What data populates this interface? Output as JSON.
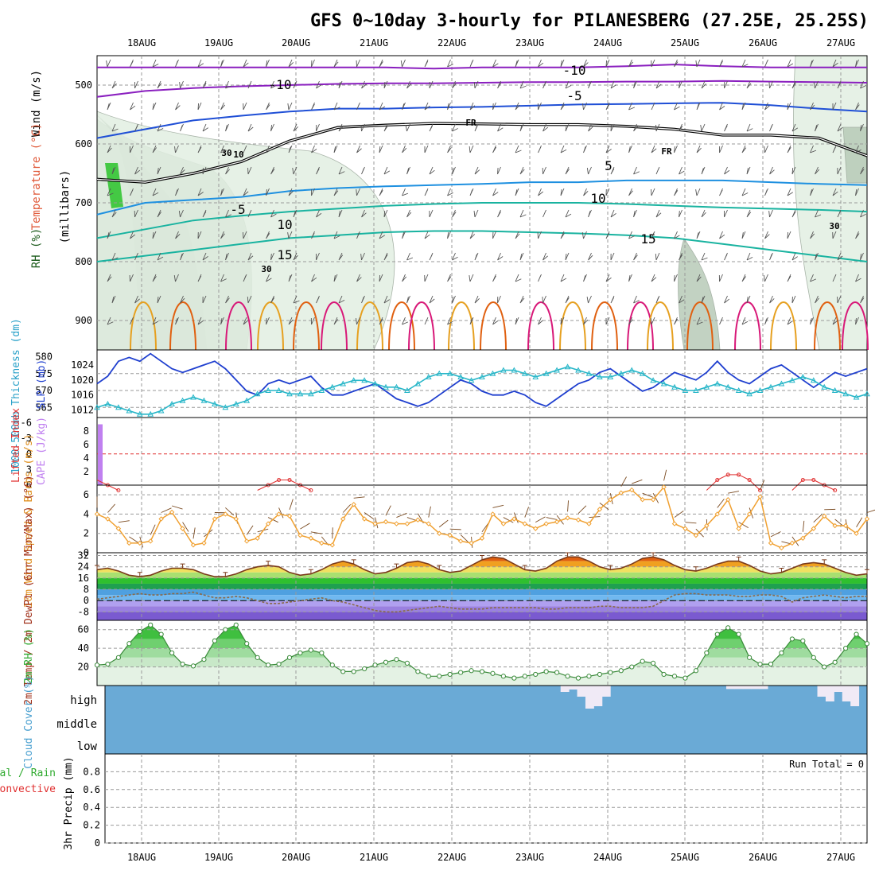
{
  "title": "GFS 0~10day 3-hourly for PILANESBERG (27.25E, 25.25S)",
  "dates": [
    "18AUG",
    "19AUG",
    "20AUG",
    "21AUG",
    "22AUG",
    "23AUG",
    "24AUG",
    "25AUG",
    "26AUG",
    "27AUG"
  ],
  "colors": {
    "temp_purple": "#8a1fbf",
    "temp_blue": "#1f4fd6",
    "temp_cyan": "#1e90e0",
    "temp_teal": "#19b3a0",
    "temp_orange": "#e6a020",
    "temp_red": "#e06010",
    "temp_magenta": "#d81878",
    "rh_dark": "#8a9a8a",
    "rh_mid": "#b8cbb8",
    "rh_light": "#e2efe2",
    "rh_green": "#44c944",
    "slp": "#1f3fcf",
    "thick": "#27b6c8",
    "cape": "#c080f0",
    "li": "#e03030",
    "wind10": "#f0a030",
    "barb": "#7a4a20",
    "temp2m": "#7a3a1a",
    "dew": "#8a6a4a",
    "rh2m": "#2faa2f",
    "cloud": "#6aaad6",
    "cloud_gap": "#f0eaf6"
  },
  "chart_data": [
    {
      "type": "heatmap",
      "panel": "upper_air",
      "ylabel": "Wind (m/s)",
      "ylabel_parts": [
        "Temperature (°C)",
        "RH (%)",
        "(millibars)"
      ],
      "yticks": [
        500,
        600,
        700,
        800,
        900
      ],
      "ylim": [
        450,
        950
      ],
      "contour_labels": [
        "-10",
        "-10",
        "-5",
        "FR",
        "FR",
        "5",
        "-5",
        "10",
        "10",
        "15",
        "15",
        "10",
        "30",
        "30",
        "30"
      ],
      "temperature_isotherms": [
        {
          "label": "-10",
          "pressure": [
            470,
            470,
            470,
            470,
            470,
            470,
            470,
            472,
            470,
            470,
            470,
            468,
            465,
            468,
            470,
            470,
            470
          ]
        },
        {
          "label": "-10",
          "pressure": [
            520,
            510,
            505,
            502,
            500,
            498,
            497,
            497,
            496,
            495,
            495,
            494,
            494,
            493,
            494,
            495,
            496
          ]
        },
        {
          "label": "-5",
          "pressure": [
            590,
            575,
            560,
            552,
            545,
            540,
            540,
            538,
            537,
            535,
            533,
            532,
            531,
            530,
            534,
            540,
            545
          ]
        },
        {
          "label": "FR",
          "pressure": [
            660,
            665,
            650,
            630,
            595,
            572,
            568,
            565,
            566,
            567,
            567,
            570,
            575,
            585,
            585,
            590,
            620
          ]
        },
        {
          "label": "5",
          "pressure": [
            720,
            700,
            695,
            690,
            680,
            675,
            672,
            670,
            668,
            665,
            665,
            662,
            662,
            662,
            665,
            668,
            670
          ]
        },
        {
          "label": "10",
          "pressure": [
            760,
            745,
            730,
            722,
            715,
            710,
            705,
            702,
            700,
            700,
            700,
            702,
            705,
            708,
            710,
            712,
            715
          ]
        },
        {
          "label": "15",
          "pressure": [
            800,
            790,
            780,
            770,
            760,
            755,
            750,
            748,
            748,
            750,
            752,
            755,
            760,
            770,
            780,
            790,
            800
          ]
        }
      ]
    },
    {
      "type": "line",
      "panel": "slp_thickness",
      "ylabel_left": "1000-500mb Thickness (dm)",
      "ylabel_right": "SLP (mb)",
      "yticks_left": [
        "580",
        "575",
        "570",
        "565"
      ],
      "yticks_right": [
        "1024",
        "1020",
        "1016",
        "1012"
      ],
      "series": [
        {
          "name": "SLP (mb)",
          "values": [
            1019,
            1021,
            1025,
            1026,
            1025,
            1027,
            1025,
            1023,
            1022,
            1023,
            1024,
            1025,
            1023,
            1020,
            1017,
            1016,
            1019,
            1020,
            1019,
            1020,
            1021,
            1018,
            1016,
            1016,
            1017,
            1018,
            1019,
            1017,
            1015,
            1014,
            1013,
            1014,
            1016,
            1018,
            1020,
            1019,
            1017,
            1016,
            1016,
            1017,
            1016,
            1014,
            1013,
            1015,
            1017,
            1019,
            1020,
            1022,
            1023,
            1021,
            1019,
            1017,
            1018,
            1020,
            1022,
            1021,
            1020,
            1022,
            1025,
            1022,
            1020,
            1019,
            1021,
            1023,
            1024,
            1022,
            1020,
            1018,
            1020,
            1022,
            1021,
            1022,
            1023
          ]
        },
        {
          "name": "1000-500mb Thickness (dm)",
          "values": [
            565,
            566,
            565,
            564,
            563,
            563,
            564,
            566,
            567,
            568,
            567,
            566,
            565,
            566,
            567,
            569,
            570,
            570,
            569,
            569,
            569,
            570,
            571,
            572,
            573,
            573,
            572,
            571,
            571,
            570,
            572,
            574,
            575,
            575,
            574,
            573,
            574,
            575,
            576,
            576,
            575,
            574,
            575,
            576,
            577,
            576,
            575,
            574,
            574,
            575,
            576,
            575,
            573,
            572,
            571,
            570,
            570,
            571,
            572,
            571,
            570,
            569,
            570,
            571,
            572,
            573,
            574,
            573,
            571,
            570,
            569,
            568,
            569
          ]
        }
      ]
    },
    {
      "type": "bar",
      "panel": "cape_li",
      "ylabel_left": "Lifted Index",
      "ylabel_right": "CAPE (J/kg)",
      "yticks_left": [
        "-6",
        "-3",
        "0",
        "3",
        "6"
      ],
      "yticks_right": [
        "8",
        "6",
        "4",
        "2"
      ],
      "cape_values": [
        9,
        0,
        0,
        0,
        0,
        0,
        0,
        0,
        0,
        0,
        0,
        0,
        0,
        0,
        0,
        0,
        0,
        0,
        0,
        0,
        0,
        0,
        0,
        0,
        0,
        0,
        0,
        0,
        0,
        0,
        0,
        0,
        0,
        0,
        0,
        0,
        0,
        0,
        0,
        0,
        0,
        0,
        0,
        0,
        0,
        0,
        0,
        0,
        0,
        0,
        0,
        0,
        0,
        0,
        0,
        0,
        0,
        0,
        0,
        0,
        0,
        0,
        0,
        0,
        0,
        0,
        0,
        0,
        0,
        0,
        0,
        0,
        0
      ],
      "li_values": [
        5,
        6,
        7,
        7,
        7,
        7,
        7,
        7,
        7,
        7,
        7,
        7,
        7,
        7,
        7,
        7,
        6,
        5,
        5,
        6,
        7,
        7,
        7,
        7,
        7,
        7,
        7,
        7,
        7,
        7,
        7,
        7,
        7,
        7,
        7,
        7,
        7,
        7,
        7,
        7,
        7,
        7,
        7,
        7,
        7,
        7,
        7,
        7,
        7,
        7,
        7,
        7,
        7,
        7,
        7,
        7,
        7,
        7,
        5,
        4,
        4,
        5,
        7,
        7,
        7,
        7,
        5,
        5,
        6,
        7,
        7,
        7,
        7
      ]
    },
    {
      "type": "line",
      "panel": "wind10m",
      "ylabel": "10m Wind Speed & Barbs (m/s)",
      "yticks": [
        "6",
        "4",
        "2",
        "0"
      ],
      "ylim": [
        0,
        7
      ],
      "series": [
        {
          "name": "10m Wind Speed",
          "values": [
            4,
            3.5,
            2.5,
            1,
            1,
            1.2,
            3.5,
            4.2,
            2.5,
            0.8,
            1,
            3.5,
            4,
            3.5,
            1.2,
            1.5,
            3,
            4,
            3.8,
            1.8,
            1.5,
            1,
            0.8,
            3.5,
            5,
            3.5,
            3,
            3.2,
            3,
            3,
            3.4,
            3,
            2,
            1.8,
            1.2,
            1,
            1.5,
            4,
            3,
            3.5,
            3,
            2.5,
            3,
            3.2,
            3.6,
            3.4,
            3,
            4.5,
            5.5,
            6.2,
            6.5,
            5.5,
            5.5,
            6.8,
            3,
            2.5,
            1.8,
            2.8,
            4,
            5.5,
            2.5,
            4,
            5.8,
            1,
            0.5,
            1,
            1.5,
            2.5,
            3.8,
            2.8,
            2.8,
            2,
            3.5
          ]
        }
      ]
    },
    {
      "type": "area",
      "panel": "temp2m",
      "ylabel": "2m Temp / 2m DewPt (6hr Min/Max) (°C)",
      "yticks": [
        "32",
        "24",
        "16",
        "8",
        "0",
        "-8"
      ],
      "ylim": [
        -14,
        34
      ],
      "series": [
        {
          "name": "2m Temp",
          "values": [
            22,
            23,
            21,
            18,
            17,
            18,
            21,
            23,
            23,
            22,
            19,
            17,
            17,
            19,
            22,
            24,
            25,
            24,
            20,
            18,
            19,
            22,
            26,
            28,
            26,
            22,
            19,
            20,
            23,
            27,
            28,
            26,
            22,
            20,
            21,
            25,
            29,
            31,
            30,
            26,
            22,
            21,
            23,
            28,
            31,
            31,
            28,
            24,
            22,
            23,
            26,
            30,
            31,
            29,
            25,
            22,
            21,
            23,
            26,
            28,
            28,
            25,
            21,
            19,
            20,
            23,
            26,
            27,
            26,
            23,
            20,
            18,
            19
          ]
        },
        {
          "name": "2m DewPt",
          "values": [
            1,
            2,
            3,
            4,
            5,
            4,
            4,
            5,
            5,
            6,
            4,
            2,
            2,
            3,
            2,
            0,
            -2,
            -2,
            -1,
            0,
            1,
            2,
            0,
            -1,
            -3,
            -5,
            -7,
            -8,
            -8,
            -7,
            -6,
            -5,
            -4,
            -5,
            -6,
            -6,
            -6,
            -5,
            -5,
            -5,
            -5,
            -5,
            -6,
            -6,
            -5,
            -5,
            -5,
            -4,
            -4,
            -5,
            -5,
            -5,
            -4,
            0,
            4,
            5,
            5,
            4,
            4,
            4,
            3,
            3,
            4,
            4,
            3,
            -1,
            2,
            3,
            4,
            3,
            2,
            3,
            3
          ]
        }
      ]
    },
    {
      "type": "area",
      "panel": "rh2m",
      "ylabel": "2m RH (%)",
      "yticks": [
        "60",
        "40",
        "20"
      ],
      "ylim": [
        0,
        70
      ],
      "series": [
        {
          "name": "2m RH",
          "values": [
            22,
            23,
            30,
            45,
            58,
            65,
            55,
            35,
            23,
            21,
            28,
            48,
            60,
            65,
            45,
            30,
            22,
            23,
            30,
            35,
            38,
            35,
            22,
            15,
            15,
            18,
            22,
            25,
            28,
            24,
            15,
            10,
            10,
            12,
            14,
            16,
            15,
            13,
            10,
            8,
            10,
            12,
            15,
            14,
            10,
            8,
            10,
            12,
            14,
            16,
            20,
            26,
            24,
            12,
            10,
            8,
            16,
            35,
            55,
            62,
            55,
            30,
            23,
            23,
            35,
            50,
            48,
            30,
            20,
            25,
            40,
            55,
            45
          ]
        }
      ]
    },
    {
      "type": "bar",
      "panel": "cloud",
      "ylabel": "Cloud Cover (%)",
      "yticks": [
        "high",
        "middle",
        "low"
      ],
      "high_cloud_gaps": [
        0,
        0,
        0,
        0,
        0,
        0,
        0,
        0,
        0,
        0,
        0,
        0,
        0,
        0,
        0,
        0,
        0,
        0,
        0,
        0,
        0,
        0,
        0,
        0,
        0,
        0,
        0,
        0,
        0,
        0,
        0,
        0,
        0,
        0,
        0,
        0,
        0,
        0,
        0,
        0,
        0,
        0,
        0,
        0,
        0,
        0,
        0,
        0,
        0,
        0,
        0,
        0,
        0,
        0,
        0,
        10,
        5,
        20,
        45,
        40,
        20,
        0,
        0,
        0,
        0,
        0,
        0,
        0,
        0,
        0,
        0,
        0,
        0,
        0,
        0,
        4,
        4,
        4,
        4,
        4,
        0,
        0,
        0,
        0,
        0,
        0,
        20,
        30,
        10,
        30,
        40,
        0
      ]
    },
    {
      "type": "bar",
      "panel": "precip",
      "ylabel": "3hr Precip (mm)",
      "ylabel_legend": [
        "Total / Rain",
        "Convective"
      ],
      "yticks": [
        "0.8",
        "0.6",
        "0.4",
        "0.2",
        "0"
      ],
      "ylim": [
        0,
        1
      ],
      "run_total": "Run Total = 0",
      "values": []
    }
  ]
}
